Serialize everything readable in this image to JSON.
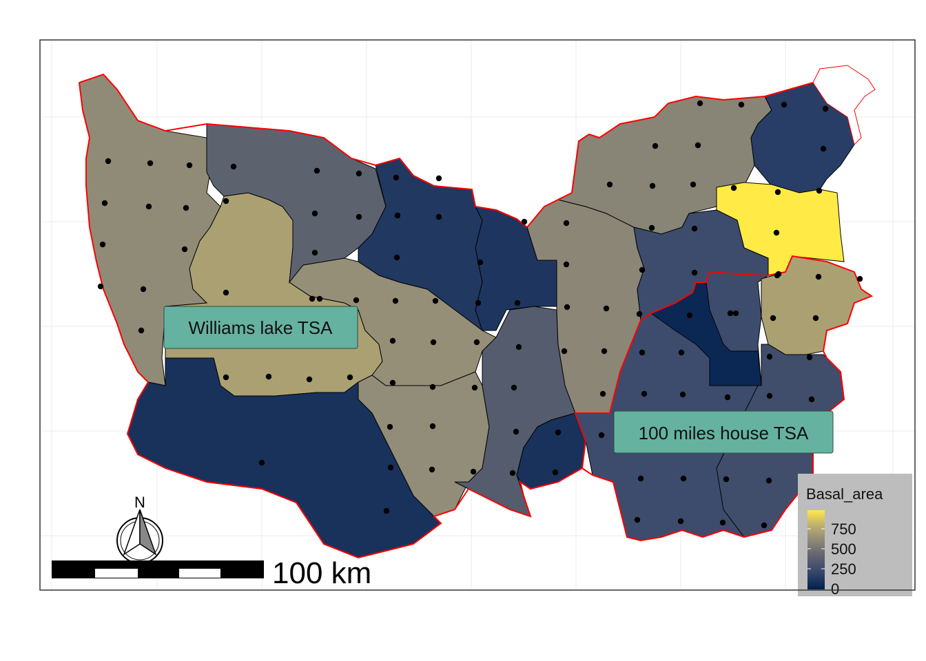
{
  "labels": {
    "williams_lake": "Williams lake TSA",
    "hundred_mile": "100 miles house TSA"
  },
  "legend": {
    "title": "Basal_area",
    "ticks": [
      "750",
      "500",
      "250",
      "0"
    ],
    "range": [
      0,
      900
    ],
    "colors": [
      "#00204d",
      "#31446b",
      "#666870",
      "#958f78",
      "#cbba69",
      "#ffea46"
    ]
  },
  "north_arrow": {
    "label": "N"
  },
  "scale_bar": {
    "label": "100 km"
  },
  "map_data": {
    "colormap": "cividis",
    "tsa_boundary_color": "#ff0000",
    "regions_basal_area": {
      "west-block": 520,
      "tan-block": 610,
      "north-slate": 330,
      "navy-central": 120,
      "navy-east-central": 110,
      "central-gray": 540,
      "south-gray": 530,
      "southwest-navy": 90,
      "south-slate": 300,
      "east-central-gray": 500,
      "northeast-gray": 490,
      "far-northeast-navy": 150,
      "yellow-block": 900,
      "east-slate": 220,
      "center-dark": 40,
      "east-tan": 610,
      "southeast-block": 230,
      "small-navy": 90
    }
  }
}
